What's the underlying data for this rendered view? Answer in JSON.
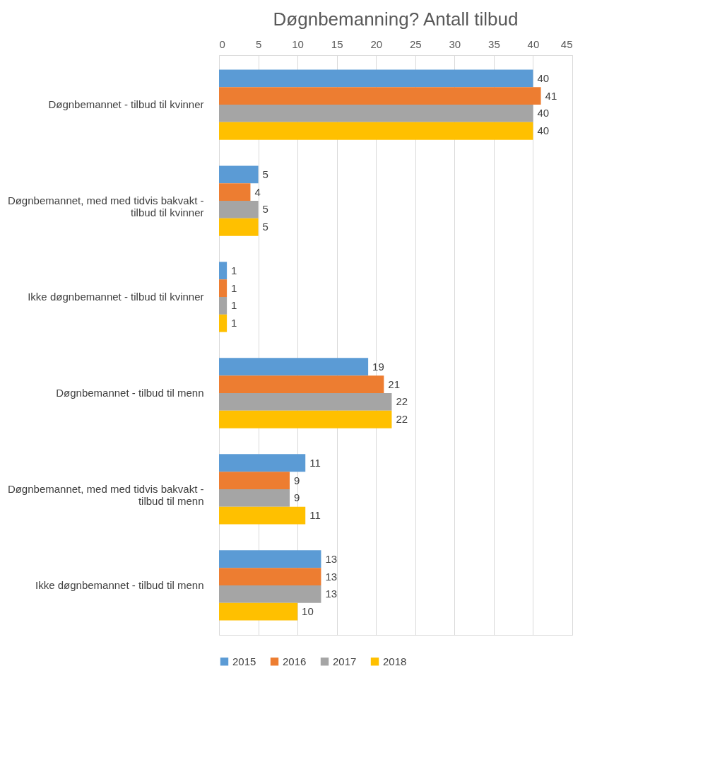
{
  "chart_data": {
    "type": "bar",
    "orientation": "horizontal",
    "title": "Døgnbemanning? Antall tilbud",
    "categories": [
      "Døgnbemannet - tilbud til kvinner",
      "Døgnbemannet, med med tidvis bakvakt -\ntilbud til kvinner",
      "Ikke døgnbemannet - tilbud til kvinner",
      "Døgnbemannet - tilbud til menn",
      "Døgnbemannet, med med tidvis bakvakt -\ntilbud til menn",
      "Ikke døgnbemannet - tilbud til menn"
    ],
    "series": [
      {
        "name": "2015",
        "color": "#5b9bd5",
        "values": [
          40,
          5,
          1,
          19,
          11,
          13
        ]
      },
      {
        "name": "2016",
        "color": "#ed7d31",
        "values": [
          41,
          4,
          1,
          21,
          9,
          13
        ]
      },
      {
        "name": "2017",
        "color": "#a5a5a5",
        "values": [
          40,
          5,
          1,
          22,
          9,
          13
        ]
      },
      {
        "name": "2018",
        "color": "#ffc000",
        "values": [
          40,
          5,
          1,
          22,
          11,
          10
        ]
      }
    ],
    "xlim": [
      0,
      45
    ],
    "xticks": [
      0,
      5,
      10,
      15,
      20,
      25,
      30,
      35,
      40,
      45
    ],
    "grid": "x",
    "legend": "bottom",
    "data_labels": true
  }
}
